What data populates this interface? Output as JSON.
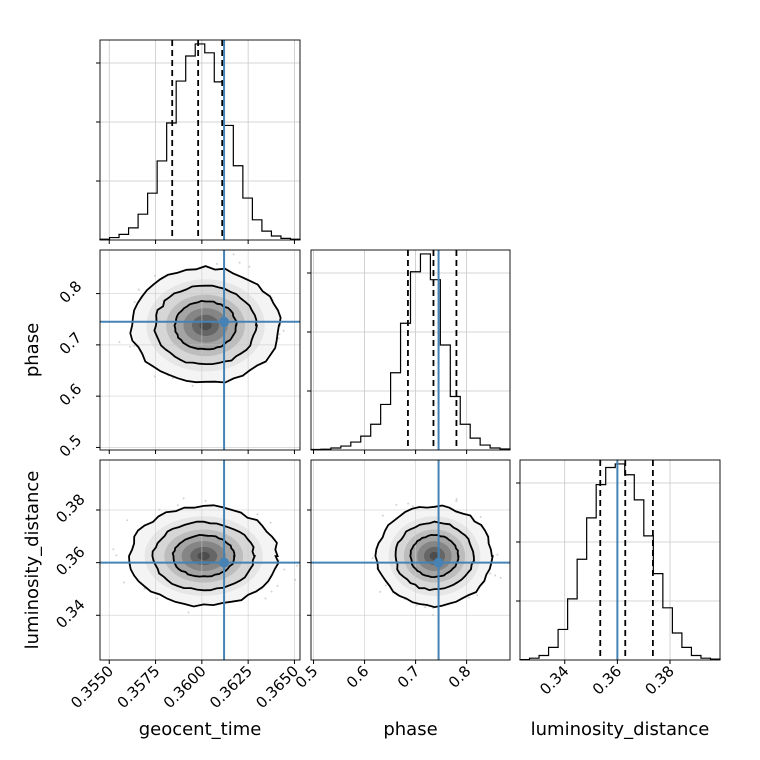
{
  "chart_data": {
    "type": "corner",
    "parameters": [
      "geocent_time",
      "phase",
      "luminosity_distance"
    ],
    "ranges": [
      [
        0.3545,
        0.3653
      ],
      [
        0.495,
        0.885
      ],
      [
        0.323,
        0.399
      ]
    ],
    "ticks": [
      [
        0.355,
        0.3575,
        0.36,
        0.3625,
        0.365
      ],
      [
        0.5,
        0.6,
        0.7,
        0.8
      ],
      [
        0.34,
        0.36,
        0.38
      ]
    ],
    "tick_labels": [
      [
        "0.3550",
        "0.3575",
        "0.3600",
        "0.3625",
        "0.3650"
      ],
      [
        "0.5",
        "0.6",
        "0.7",
        "0.8"
      ],
      [
        "0.34",
        "0.36",
        "0.38"
      ]
    ],
    "y_ticks": {
      "phase": [
        0.5,
        0.6,
        0.7,
        0.8
      ],
      "luminosity_distance": [
        0.34,
        0.36,
        0.38
      ]
    },
    "y_tick_labels": {
      "phase": [
        "0.5",
        "0.6",
        "0.7",
        "0.8"
      ],
      "luminosity_distance": [
        "0.34",
        "0.36",
        "0.38"
      ]
    },
    "truths": [
      0.3612,
      0.745,
      0.36
    ],
    "quantiles": [
      [
        0.3584,
        0.3598,
        0.3611
      ],
      [
        0.685,
        0.735,
        0.78
      ],
      [
        0.3535,
        0.363,
        0.3735
      ]
    ],
    "histograms": [
      [
        0.3545,
        0.3653,
        [
          1,
          3,
          7,
          15,
          32,
          58,
          98,
          145,
          197,
          228,
          243,
          232,
          196,
          142,
          92,
          52,
          25,
          11,
          5,
          2,
          1
        ]
      ],
      [
        0.495,
        0.885,
        [
          0.5,
          0.8,
          2,
          4,
          8,
          14,
          26,
          46,
          78,
          128,
          180,
          198,
          172,
          106,
          54,
          26,
          12,
          5,
          2,
          1
        ]
      ],
      [
        0.323,
        0.399,
        [
          0.5,
          2,
          5,
          14,
          34,
          68,
          112,
          158,
          195,
          214,
          218,
          206,
          178,
          138,
          96,
          58,
          30,
          14,
          5,
          2,
          1
        ]
      ]
    ],
    "contours": {
      "geocent_time-phase": {
        "center": [
          0.3602,
          0.738
        ],
        "sigma": [
          0.00133,
          0.0375
        ],
        "levels": [
          1.25,
          2.05,
          3.0
        ]
      },
      "geocent_time-luminosity_distance": {
        "center": [
          0.3601,
          0.3625
        ],
        "sigma": [
          0.00133,
          0.0063
        ],
        "levels": [
          1.25,
          2.05,
          3.0
        ]
      },
      "phase-luminosity_distance": {
        "center": [
          0.737,
          0.3625
        ],
        "sigma": [
          0.0375,
          0.0063
        ],
        "levels": [
          1.25,
          2.05,
          3.0
        ]
      }
    },
    "grid": true,
    "truth_color": "#4682b4",
    "hist_color": "#000000"
  }
}
